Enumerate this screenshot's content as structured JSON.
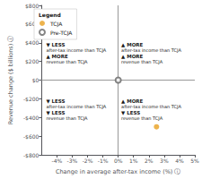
{
  "chart_data": {
    "type": "scatter",
    "xlabel": "Change in average after-tax income (%) ⓘ",
    "ylabel": "Revenue change ($ billions) ⓘ",
    "xlim": [
      -5,
      5
    ],
    "ylim": [
      -800,
      800
    ],
    "xticks": [
      {
        "value": -4,
        "label": "-4%"
      },
      {
        "value": -3,
        "label": "-3%"
      },
      {
        "value": -2,
        "label": "-2%"
      },
      {
        "value": -1,
        "label": "-1%"
      },
      {
        "value": 0,
        "label": "0%"
      },
      {
        "value": 1,
        "label": "1%"
      },
      {
        "value": 2,
        "label": "2%"
      },
      {
        "value": 3,
        "label": "3%"
      },
      {
        "value": 4,
        "label": "4%"
      },
      {
        "value": 5,
        "label": "5%"
      }
    ],
    "yticks": [
      {
        "value": -800,
        "label": "-$800"
      },
      {
        "value": -600,
        "label": "-$600"
      },
      {
        "value": -400,
        "label": "-$400"
      },
      {
        "value": -200,
        "label": "-$200"
      },
      {
        "value": 0,
        "label": "$0"
      },
      {
        "value": 200,
        "label": "$200"
      },
      {
        "value": 400,
        "label": "$400"
      },
      {
        "value": 600,
        "label": "$600"
      },
      {
        "value": 800,
        "label": "$800"
      }
    ],
    "x_divider": 0,
    "y_divider": 0,
    "grid": false,
    "legend": "upper left",
    "series": [
      {
        "name": "Pre-TCJA",
        "color": "#666666",
        "marker": "emptyCircle",
        "x": [
          0
        ],
        "values": [
          0
        ]
      },
      {
        "name": "TCJA",
        "color": "#e8a020",
        "marker": "circle",
        "x": [
          2.5
        ],
        "values": [
          -500
        ]
      }
    ],
    "annotations": [
      {
        "text": "▼ LESS\nafter-tax income than TCJA\n▲ MORE\nrevenue than TCJA",
        "x": -4.7,
        "y": 280
      },
      {
        "text": "▲ MORE\nafter-tax income than TCJA\n▲ MORE\nrevenue than TCJA",
        "x": 0.2,
        "y": 280
      },
      {
        "text": "▼ LESS\nafter-tax income than TCJA\n▼ LESS\nrevenue than TCJA",
        "x": -4.7,
        "y": -320
      },
      {
        "text": "▲ MORE\nafter-tax income than TCJA\n▼ LESS\nrevenue than TCJA",
        "x": 0.2,
        "y": -320
      },
      {
        "text": "Legend"
      }
    ]
  }
}
